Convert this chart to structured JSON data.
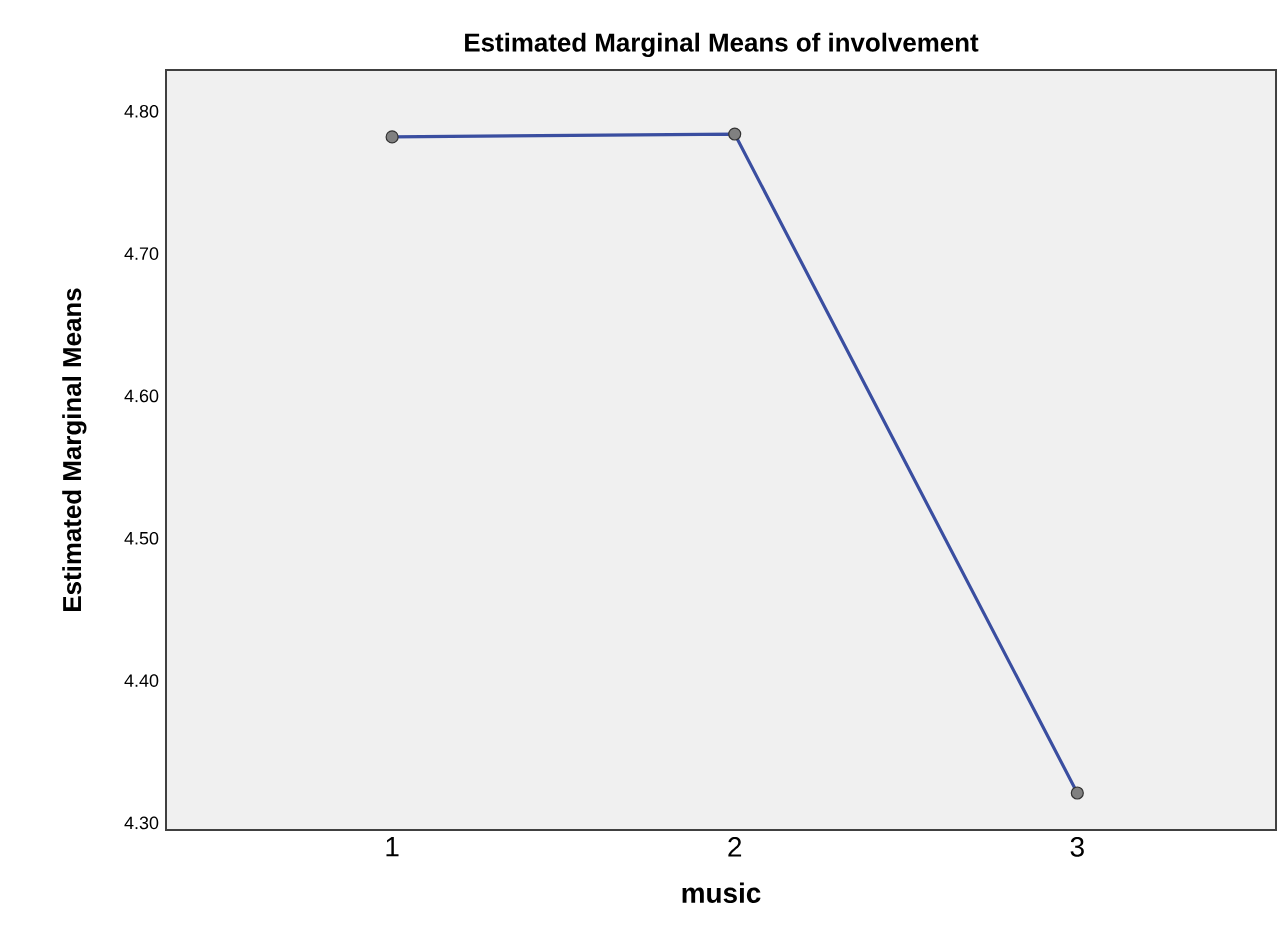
{
  "chart_data": {
    "type": "line",
    "title": "Estimated Marginal Means of involvement",
    "xlabel": "music",
    "ylabel": "Estimated Marginal Means",
    "categories": [
      "1",
      "2",
      "3"
    ],
    "series": [
      {
        "color": "#3a4ea0",
        "values": [
          4.782,
          4.784,
          4.321
        ]
      }
    ],
    "ylim": [
      4.295,
      4.829
    ],
    "yticks": [
      {
        "value": 4.3,
        "label": "4.30"
      },
      {
        "value": 4.4,
        "label": "4.40"
      },
      {
        "value": 4.5,
        "label": "4.50"
      },
      {
        "value": 4.6,
        "label": "4.60"
      },
      {
        "value": 4.7,
        "label": "4.70"
      },
      {
        "value": 4.8,
        "label": "4.80"
      }
    ],
    "grid": false,
    "marker": "circle",
    "line_style": "solid"
  }
}
